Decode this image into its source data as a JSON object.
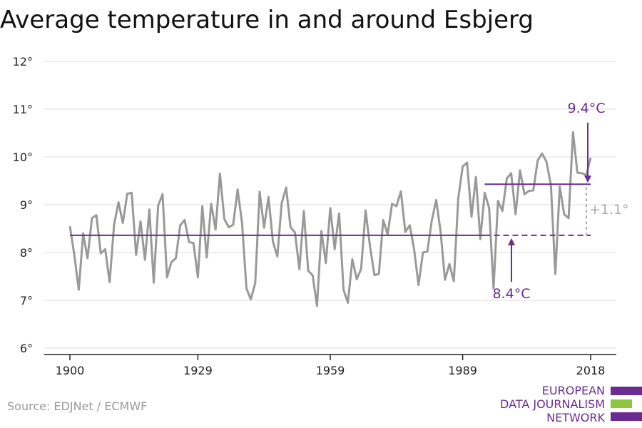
{
  "title": "Average temperature in and around Esbjerg",
  "source": "Source: EDJNet / ECMWF",
  "logo": {
    "lines": [
      "EUROPEAN",
      "DATA JOURNALISM",
      "NETWORK"
    ],
    "colors": [
      "#6a2c91",
      "#8dc63f",
      "#6a2c91"
    ]
  },
  "colors": {
    "series": "#999999",
    "accent": "#6a2c91",
    "difference": "#aaaaaa",
    "grid": "#dddddd"
  },
  "chart_data": {
    "type": "line",
    "title": "Average temperature in and around Esbjerg",
    "xlabel": "",
    "ylabel": "",
    "xlim": [
      1900,
      2018
    ],
    "ylim": [
      6,
      12
    ],
    "x_ticks": [
      1900,
      1929,
      1959,
      1989,
      2018
    ],
    "y_ticks": [
      6,
      7,
      8,
      9,
      10,
      11,
      12
    ],
    "y_tick_labels": [
      "6°",
      "7°",
      "8°",
      "9°",
      "10°",
      "11°",
      "12°"
    ],
    "grid": true,
    "series": [
      {
        "x": [
          1900,
          1901,
          1902,
          1903,
          1904,
          1905,
          1906,
          1907,
          1908,
          1909,
          1910,
          1911,
          1912,
          1913,
          1914,
          1915,
          1916,
          1917,
          1918,
          1919,
          1920,
          1921,
          1922,
          1923,
          1924,
          1925,
          1926,
          1927,
          1928,
          1929,
          1930,
          1931,
          1932,
          1933,
          1934,
          1935,
          1936,
          1937,
          1938,
          1939,
          1940,
          1941,
          1942,
          1943,
          1944,
          1945,
          1946,
          1947,
          1948,
          1949,
          1950,
          1951,
          1952,
          1953,
          1954,
          1955,
          1956,
          1957,
          1958,
          1959,
          1960,
          1961,
          1962,
          1963,
          1964,
          1965,
          1966,
          1967,
          1968,
          1969,
          1970,
          1971,
          1972,
          1973,
          1974,
          1975,
          1976,
          1977,
          1978,
          1979,
          1980,
          1981,
          1982,
          1983,
          1984,
          1985,
          1986,
          1987,
          1988,
          1989,
          1990,
          1991,
          1992,
          1993,
          1994,
          1995,
          1996,
          1997,
          1998,
          1999,
          2000,
          2001,
          2002,
          2003,
          2004,
          2005,
          2006,
          2007,
          2008,
          2009,
          2010,
          2011,
          2012,
          2013,
          2014,
          2015,
          2016,
          2017,
          2018
        ],
        "values": [
          8.55,
          7.95,
          7.22,
          8.4,
          7.88,
          8.72,
          8.78,
          7.98,
          8.07,
          7.38,
          8.58,
          9.05,
          8.62,
          9.23,
          9.25,
          7.95,
          8.65,
          7.85,
          8.9,
          7.37,
          8.98,
          9.22,
          7.48,
          7.8,
          7.88,
          8.57,
          8.68,
          8.22,
          8.2,
          7.48,
          8.97,
          7.9,
          9.02,
          8.48,
          9.65,
          8.7,
          8.53,
          8.58,
          9.32,
          8.62,
          7.25,
          7.02,
          7.36,
          9.27,
          8.52,
          9.16,
          8.23,
          7.92,
          9.03,
          9.36,
          8.53,
          8.42,
          7.65,
          8.87,
          7.62,
          7.52,
          6.88,
          8.45,
          7.78,
          8.93,
          8.07,
          8.82,
          7.22,
          6.95,
          7.86,
          7.44,
          7.66,
          8.88,
          8.13,
          7.53,
          7.55,
          8.68,
          8.38,
          9.02,
          8.97,
          9.28,
          8.43,
          8.57,
          8.07,
          7.32,
          8.0,
          8.02,
          8.67,
          9.1,
          8.43,
          7.43,
          7.76,
          7.4,
          9.13,
          9.8,
          9.88,
          8.75,
          9.58,
          8.28,
          9.25,
          8.93,
          7.25,
          9.08,
          8.87,
          9.55,
          9.66,
          8.8,
          9.72,
          9.22,
          9.29,
          9.3,
          9.93,
          10.07,
          9.9,
          9.41,
          7.55,
          9.38,
          8.8,
          8.72,
          10.52,
          9.67,
          9.66,
          9.62,
          9.98
        ]
      }
    ],
    "annotations": [
      {
        "label": "9.4°C",
        "value": 9.43,
        "from": 1994,
        "to": 2018
      },
      {
        "label": "8.4°C",
        "value": 8.36,
        "from": 1900,
        "to": 2018
      },
      {
        "label": "+1.1°",
        "kind": "difference"
      }
    ]
  }
}
